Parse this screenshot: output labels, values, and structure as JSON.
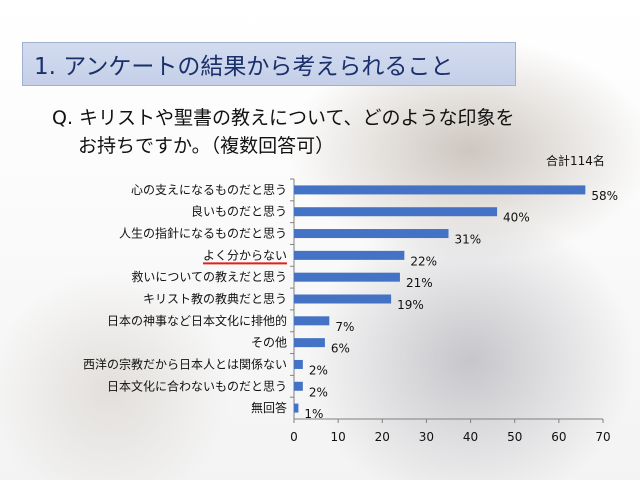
{
  "slide": {
    "title": "1. アンケートの結果から考えられること",
    "question_line1": "Q. キリストや聖書の教えについて、どのような印象を",
    "question_line2": "お持ちですか。（複数回答可）",
    "total_label": "合計114名"
  },
  "colors": {
    "bar": "#4472c4",
    "underline": "#e0201a",
    "title_bg": "#c9d3ea",
    "title_text": "#1b2f6b"
  },
  "chart_data": {
    "type": "bar",
    "orientation": "horizontal",
    "categories": [
      "心の支えになるものだと思う",
      "良いものだと思う",
      "人生の指針になるものだと思う",
      "よく分からない",
      "救いについての教えだと思う",
      "キリスト教の教典だと思う",
      "日本の神事など日本文化に排他的",
      "その他",
      "西洋の宗教だから日本人とは関係ない",
      "日本文化に合わないものだと思う",
      "無回答"
    ],
    "values": [
      66,
      46,
      35,
      25,
      24,
      22,
      8,
      7,
      2,
      2,
      1
    ],
    "data_labels": [
      "58%",
      "40%",
      "31%",
      "22%",
      "21%",
      "19%",
      "7%",
      "6%",
      "2%",
      "2%",
      "1%"
    ],
    "highlighted_category": "よく分からない",
    "xlim": [
      0,
      70
    ],
    "x_ticks": [
      0,
      10,
      20,
      30,
      40,
      50,
      60,
      70
    ],
    "grid": false
  }
}
